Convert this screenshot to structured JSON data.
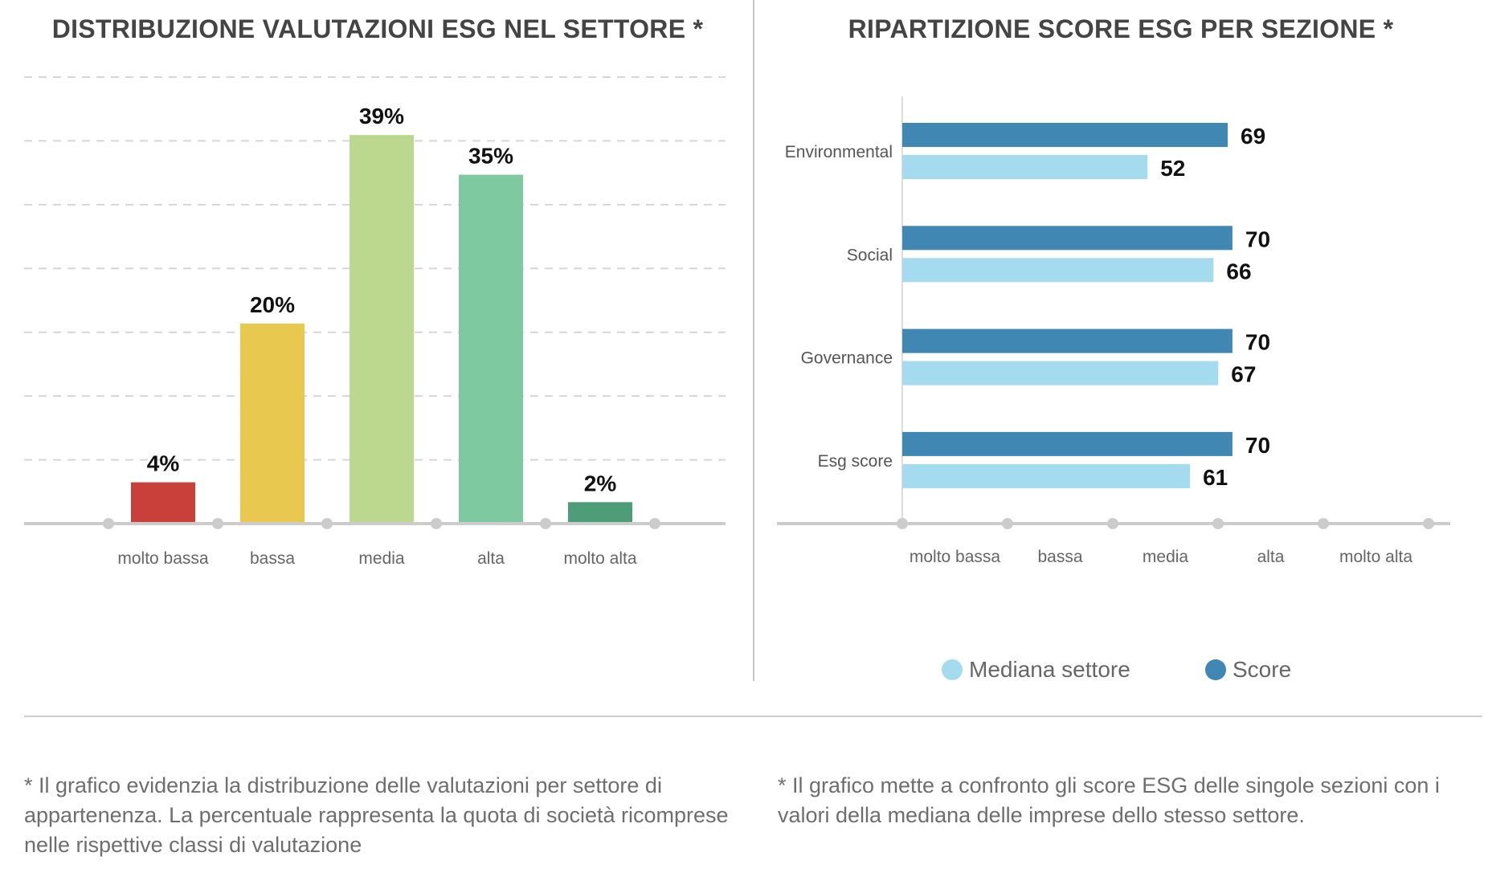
{
  "left_title": "DISTRIBUZIONE VALUTAZIONI ESG NEL SETTORE *",
  "right_title": "RIPARTIZIONE SCORE ESG PER SEZIONE *",
  "chart_data": [
    {
      "type": "bar",
      "title": "DISTRIBUZIONE VALUTAZIONI ESG NEL SETTORE *",
      "categories": [
        "molto bassa",
        "bassa",
        "media",
        "alta",
        "molto alta"
      ],
      "values": [
        4,
        20,
        39,
        35,
        2
      ],
      "value_labels": [
        "4%",
        "20%",
        "39%",
        "35%",
        "2%"
      ],
      "colors": [
        "#c9403a",
        "#e8c84e",
        "#bcd88f",
        "#7fc9a0",
        "#4f9c78"
      ],
      "ylim": [
        0,
        45
      ],
      "grid": true
    },
    {
      "type": "bar",
      "orientation": "horizontal",
      "title": "RIPARTIZIONE SCORE ESG PER SEZIONE *",
      "categories": [
        "Environmental",
        "Social",
        "Governance",
        "Esg score"
      ],
      "series": [
        {
          "name": "Score",
          "values": [
            69,
            70,
            70,
            70
          ],
          "color": "#4187b3"
        },
        {
          "name": "Mediana settore",
          "values": [
            52,
            66,
            67,
            61
          ],
          "color": "#a5dbef"
        }
      ],
      "x_tick_labels": [
        "molto bassa",
        "bassa",
        "media",
        "alta",
        "molto alta"
      ],
      "xlim": [
        0,
        100
      ],
      "legend": "bottom"
    }
  ],
  "legend": {
    "median": "Mediana settore",
    "score": "Score"
  },
  "footnote_left": "* Il grafico evidenzia la distribuzione delle valutazioni per settore di appartenenza. La percentuale rappresenta la quota di società ricomprese nelle rispettive classi di valutazione",
  "footnote_right": "* Il grafico mette a confronto gli score ESG delle singole sezioni con i valori della mediana delle imprese dello stesso settore."
}
